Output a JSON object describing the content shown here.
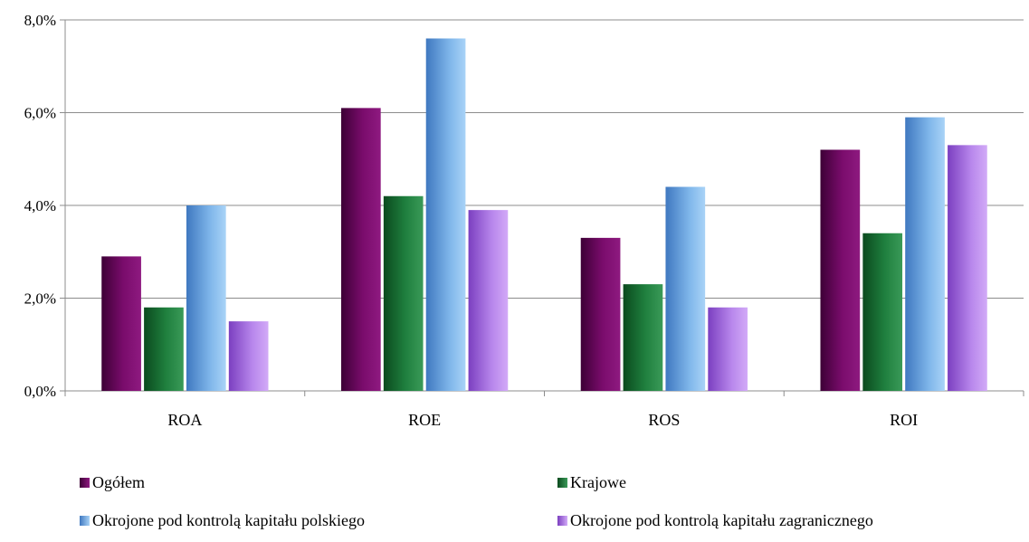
{
  "chart_data": {
    "type": "bar",
    "categories": [
      "ROA",
      "ROE",
      "ROS",
      "ROI"
    ],
    "series": [
      {
        "name": "Ogółem",
        "values": [
          2.9,
          6.1,
          3.3,
          5.2
        ],
        "color": "#6a0a5e"
      },
      {
        "name": "Krajowe",
        "values": [
          1.8,
          4.2,
          2.3,
          3.4
        ],
        "color": "#1e7a3c"
      },
      {
        "name": "Okrojone pod kontrolą kapitału polskiego",
        "values": [
          4.0,
          7.6,
          4.4,
          5.9
        ],
        "color": "#6fa8e0"
      },
      {
        "name": "Okrojone pod kontrolą kapitału zagranicznego",
        "values": [
          1.5,
          3.9,
          1.8,
          5.3
        ],
        "color": "#b47ee8"
      }
    ],
    "y_ticks": [
      "0,0%",
      "2,0%",
      "4,0%",
      "6,0%",
      "8,0%"
    ],
    "ylim": [
      0,
      8
    ],
    "grid": true,
    "legend_position": "bottom"
  }
}
